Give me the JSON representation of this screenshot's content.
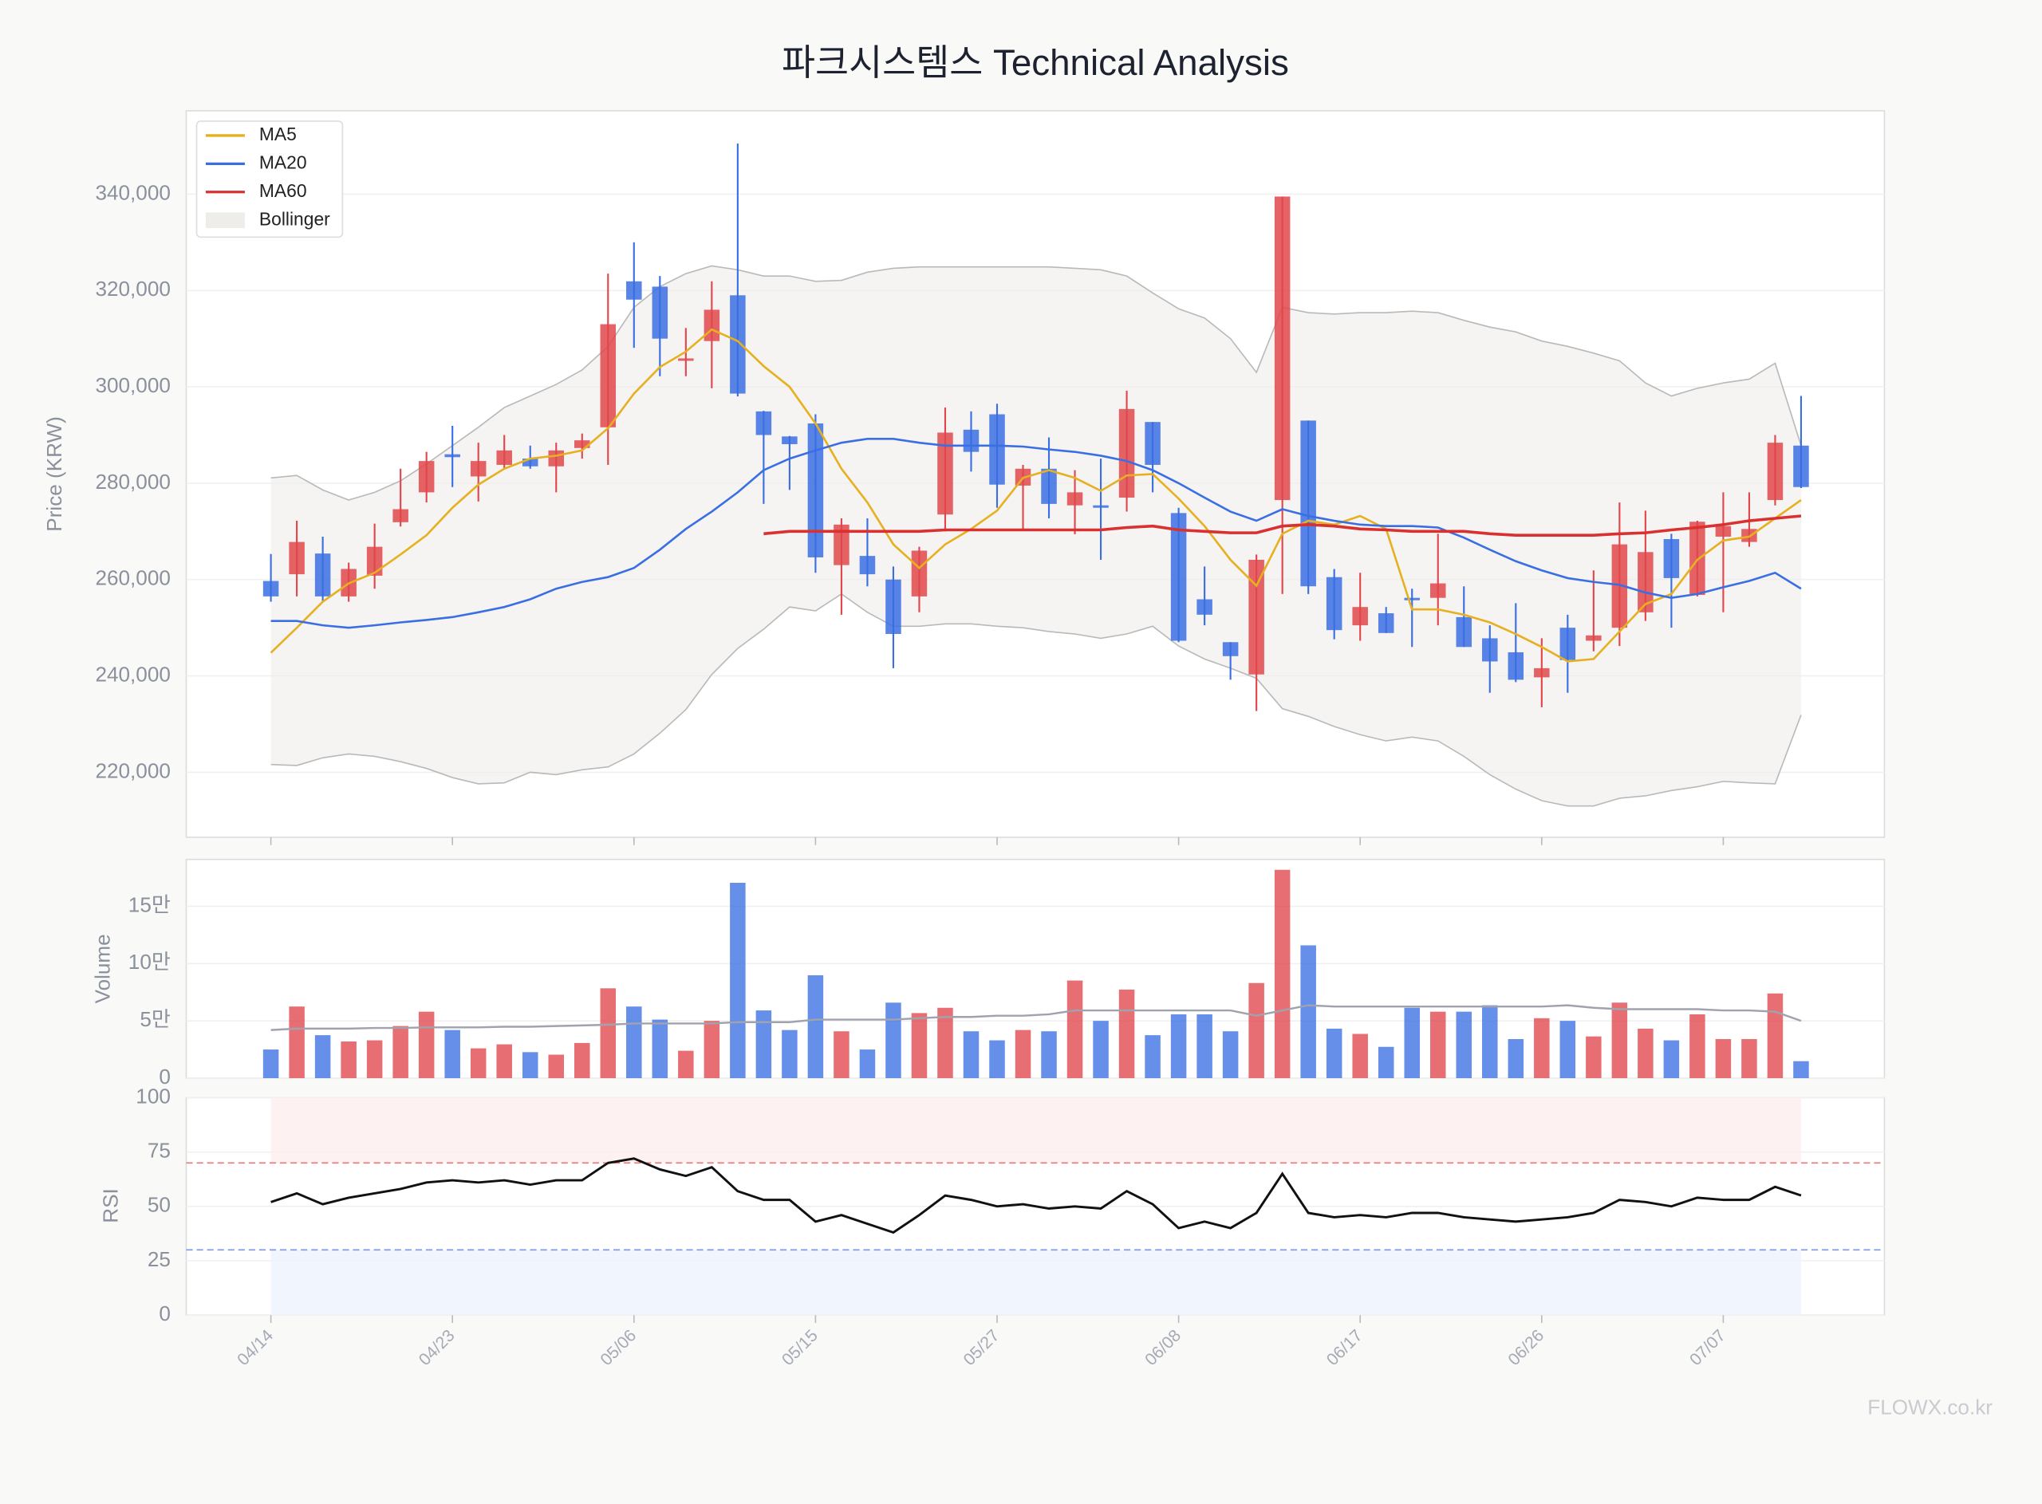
{
  "chart_data": {
    "type": "candlestick",
    "title": "파크시스템스 Technical Analysis",
    "watermark": "FLOWX.co.kr",
    "categories": [
      "04/14",
      null,
      null,
      null,
      null,
      null,
      null,
      "04/23",
      null,
      null,
      null,
      null,
      null,
      null,
      "05/06",
      null,
      null,
      null,
      null,
      null,
      null,
      "05/15",
      null,
      null,
      null,
      null,
      null,
      null,
      "05/27",
      null,
      null,
      null,
      null,
      null,
      null,
      "06/08",
      null,
      null,
      null,
      null,
      null,
      null,
      "06/17",
      null,
      null,
      null,
      null,
      null,
      null,
      "06/26",
      null,
      null,
      null,
      null,
      null,
      null,
      "07/07",
      null,
      null,
      null
    ],
    "open": [
      259700,
      261100,
      265400,
      256500,
      260800,
      271900,
      278100,
      286000,
      281400,
      283800,
      285100,
      283500,
      287300,
      291600,
      321900,
      320800,
      305400,
      309500,
      319000,
      294900,
      289700,
      292400,
      263000,
      264900,
      260000,
      256500,
      273500,
      291100,
      294300,
      279500,
      283000,
      275400,
      275400,
      277000,
      292700,
      273800,
      255900,
      247000,
      240300,
      276500,
      293000,
      260500,
      250500,
      253000,
      256200,
      256200,
      252200,
      247800,
      244900,
      239700,
      250000,
      247300,
      250000,
      253200,
      268400,
      256800,
      268900,
      267800,
      276500,
      287800
    ],
    "high": [
      265300,
      272200,
      268900,
      263500,
      271600,
      283000,
      286500,
      291900,
      288400,
      290000,
      287800,
      288400,
      290300,
      323500,
      330000,
      323000,
      312200,
      321900,
      350500,
      295000,
      289800,
      294300,
      272700,
      272700,
      262700,
      266800,
      295700,
      294900,
      296500,
      283800,
      289500,
      282700,
      285100,
      299200,
      292700,
      274900,
      262700,
      247000,
      265200,
      339500,
      293000,
      262200,
      261400,
      254300,
      258100,
      269500,
      258600,
      250500,
      255100,
      247800,
      252700,
      261900,
      276000,
      274300,
      269500,
      272200,
      278100,
      278100,
      290000,
      298100
    ],
    "low": [
      255400,
      256500,
      255400,
      255400,
      258100,
      271000,
      276000,
      279200,
      276200,
      283000,
      283000,
      278100,
      285100,
      283800,
      308100,
      302200,
      302200,
      299700,
      298000,
      275700,
      278600,
      261400,
      252700,
      258600,
      241600,
      253200,
      270000,
      282400,
      274900,
      270500,
      272700,
      269400,
      264100,
      274100,
      278100,
      247000,
      250500,
      239200,
      232700,
      257000,
      257000,
      247600,
      247300,
      248900,
      246000,
      250500,
      246000,
      236500,
      238700,
      233500,
      236500,
      245100,
      246200,
      251400,
      250000,
      256500,
      253200,
      266800,
      275400,
      279000
    ],
    "close": [
      256500,
      267800,
      256500,
      262200,
      266800,
      274600,
      284600,
      285400,
      284600,
      286800,
      283500,
      286800,
      288900,
      313000,
      318100,
      310000,
      305900,
      316000,
      298600,
      290000,
      288100,
      264600,
      271400,
      261100,
      248700,
      266000,
      290500,
      286500,
      279700,
      283000,
      275700,
      278100,
      274900,
      295400,
      283800,
      247300,
      252700,
      244100,
      264100,
      339500,
      258600,
      249500,
      254300,
      248900,
      255700,
      259200,
      246000,
      243000,
      239200,
      241600,
      243300,
      248400,
      267300,
      265700,
      260300,
      272000,
      271100,
      270500,
      288400,
      279200
    ],
    "up_color": "#e0464b",
    "down_color": "#3a6fe3",
    "series": [
      {
        "name": "MA5",
        "color": "#e6b020",
        "values": [
          244800,
          250000,
          255400,
          259200,
          261400,
          265200,
          269200,
          274900,
          279700,
          283000,
          285100,
          285700,
          286800,
          291400,
          298600,
          304100,
          307300,
          311900,
          309500,
          304300,
          300000,
          292400,
          283000,
          276000,
          267300,
          262400,
          267300,
          270500,
          274300,
          281100,
          282700,
          281100,
          278400,
          281600,
          281900,
          276800,
          271100,
          264100,
          258700,
          269500,
          272200,
          271400,
          273200,
          270500,
          253800,
          253800,
          252700,
          251100,
          248700,
          246000,
          243000,
          243500,
          249200,
          254900,
          257000,
          264100,
          268100,
          268900,
          272700,
          276500
        ]
      },
      {
        "name": "MA20",
        "color": "#3a6fe3",
        "values": [
          251400,
          251400,
          250500,
          250000,
          250500,
          251100,
          251600,
          252200,
          253200,
          254300,
          255900,
          258100,
          259500,
          260500,
          262400,
          266200,
          270500,
          274100,
          278100,
          282700,
          285100,
          286800,
          288400,
          289200,
          289200,
          288400,
          287800,
          287800,
          287800,
          287600,
          287000,
          286500,
          285700,
          284600,
          282700,
          280000,
          277000,
          274100,
          272200,
          274600,
          273200,
          272200,
          271400,
          271100,
          271100,
          270800,
          268700,
          266200,
          263800,
          261900,
          260300,
          259500,
          258900,
          257300,
          256200,
          257000,
          258400,
          259700,
          261400,
          258100
        ]
      },
      {
        "name": "MA60",
        "color": "#d93030",
        "values": [
          null,
          null,
          null,
          null,
          null,
          null,
          null,
          null,
          null,
          null,
          null,
          null,
          null,
          null,
          null,
          null,
          null,
          null,
          null,
          269500,
          270000,
          270000,
          270000,
          270000,
          270000,
          270000,
          270300,
          270300,
          270300,
          270300,
          270300,
          270300,
          270300,
          270800,
          271100,
          270300,
          270000,
          269700,
          269700,
          271100,
          271400,
          271100,
          270500,
          270300,
          270000,
          270000,
          270000,
          269500,
          269200,
          269200,
          269200,
          269200,
          269500,
          269700,
          270300,
          270800,
          271400,
          272200,
          272700,
          273200
        ]
      }
    ],
    "bollinger": {
      "name": "Bollinger",
      "color": "#b9b9b9",
      "fill": "#efedea",
      "upper": [
        281100,
        281600,
        278600,
        276500,
        278100,
        280500,
        284000,
        287800,
        291600,
        295700,
        298100,
        300500,
        303500,
        308400,
        316500,
        320800,
        323500,
        325100,
        324300,
        323000,
        323000,
        321900,
        322100,
        323800,
        324600,
        324900,
        324900,
        324900,
        324900,
        324900,
        324900,
        324600,
        324300,
        323000,
        319500,
        316200,
        314300,
        310000,
        303000,
        316500,
        315400,
        315100,
        315400,
        315400,
        315700,
        315400,
        313800,
        312400,
        311400,
        309500,
        308400,
        307000,
        305400,
        300800,
        298100,
        299700,
        300800,
        301600,
        304900,
        287800
      ],
      "lower": [
        221600,
        221400,
        223000,
        223800,
        223300,
        222200,
        220800,
        218900,
        217600,
        217800,
        220000,
        219500,
        220500,
        221100,
        223800,
        228100,
        233000,
        240300,
        245700,
        249700,
        254300,
        253500,
        257000,
        253200,
        250300,
        250300,
        250800,
        250800,
        250300,
        250000,
        249200,
        248700,
        247800,
        248700,
        250300,
        246200,
        243500,
        241600,
        239500,
        233200,
        231600,
        229500,
        227800,
        226500,
        227300,
        226500,
        223300,
        219500,
        216500,
        214100,
        213000,
        213000,
        214600,
        215100,
        216200,
        217000,
        218100,
        217800,
        217600,
        231900
      ]
    },
    "ylabel": "Price (KRW)",
    "ylim": [
      206500,
      357300
    ],
    "yticks": [
      {
        "value": 220000,
        "label": "220,000"
      },
      {
        "value": 240000,
        "label": "240,000"
      },
      {
        "value": 260000,
        "label": "260,000"
      },
      {
        "value": 280000,
        "label": "280,000"
      },
      {
        "value": 300000,
        "label": "300,000"
      },
      {
        "value": 320000,
        "label": "320,000"
      },
      {
        "value": 340000,
        "label": "340,000"
      }
    ],
    "grid": true,
    "legend": "upper left",
    "volume": {
      "ylabel": "Volume",
      "values": [
        25000,
        62500,
        37500,
        32000,
        33000,
        45500,
        58000,
        42000,
        26000,
        29500,
        22700,
        20500,
        30700,
        78400,
        62500,
        51100,
        23900,
        50000,
        170500,
        59100,
        42000,
        89800,
        40900,
        25000,
        65900,
        56800,
        61400,
        40900,
        33000,
        42000,
        40900,
        85200,
        50000,
        77300,
        37500,
        55700,
        55700,
        40900,
        83000,
        181800,
        115900,
        43200,
        38600,
        27300,
        61400,
        58000,
        58000,
        63600,
        34100,
        52300,
        50000,
        36400,
        65900,
        43200,
        33000,
        55700,
        34100,
        34100,
        73900,
        14800
      ],
      "ma": [
        42000,
        43200,
        43200,
        43200,
        43800,
        43800,
        44300,
        44300,
        44300,
        44900,
        44900,
        45500,
        46000,
        46600,
        47700,
        47700,
        47700,
        47700,
        48900,
        48900,
        48900,
        51100,
        51100,
        51100,
        51100,
        52300,
        53400,
        53400,
        54500,
        54500,
        55700,
        59100,
        59100,
        59100,
        59100,
        59100,
        59100,
        59100,
        54500,
        59100,
        63600,
        62500,
        62500,
        62500,
        62500,
        62500,
        62500,
        62500,
        62500,
        62500,
        63600,
        61400,
        60200,
        60200,
        60200,
        60200,
        59100,
        59100,
        58000,
        50000
      ],
      "ma_color": "#a0a3ad",
      "ylim": [
        0,
        190900
      ],
      "yticks": [
        0,
        {
          "value": 50000,
          "label": "5만"
        },
        {
          "value": 100000,
          "label": "10만"
        },
        {
          "value": 150000,
          "label": "15만"
        }
      ]
    },
    "rsi": {
      "ylabel": "RSI",
      "color": "#111111",
      "values": [
        52,
        56,
        51,
        54,
        56,
        58,
        61,
        62,
        61,
        62,
        60,
        62,
        62,
        70,
        72,
        67,
        64,
        68,
        57,
        53,
        53,
        43,
        46,
        42,
        38,
        46,
        55,
        53,
        50,
        51,
        49,
        50,
        49,
        57,
        51,
        40,
        43,
        40,
        47,
        65,
        47,
        45,
        46,
        45,
        47,
        47,
        45,
        44,
        43,
        44,
        45,
        47,
        53,
        52,
        50,
        54,
        53,
        53,
        59,
        55
      ],
      "ylim": [
        0,
        100
      ],
      "yticks": [
        0,
        25,
        50,
        75,
        100
      ],
      "overbought": 70,
      "oversold": 30
    }
  }
}
